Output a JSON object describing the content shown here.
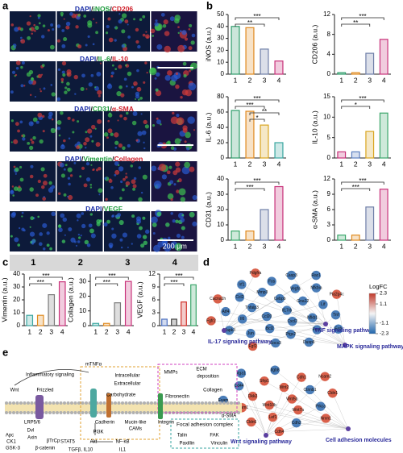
{
  "panel_letters": [
    "a",
    "b",
    "c",
    "d",
    "e"
  ],
  "panel_a": {
    "row_labels": [
      {
        "parts": [
          "DAPI",
          "/",
          "iNOS",
          "/",
          "CD206"
        ],
        "colors": [
          "#1b2fa8",
          "#111111",
          "#1a9a3a",
          "#111111",
          "#d0202a"
        ]
      },
      {
        "parts": [
          "DAPI",
          "/",
          "IL-6",
          "/",
          "IL-10"
        ],
        "colors": [
          "#1b2fa8",
          "#111111",
          "#1a9a3a",
          "#111111",
          "#d0202a"
        ]
      },
      {
        "parts": [
          "DAPI",
          "/",
          "CD31",
          "/",
          "α-SMA"
        ],
        "colors": [
          "#1b2fa8",
          "#111111",
          "#1a9a3a",
          "#111111",
          "#d0202a"
        ]
      },
      {
        "parts": [
          "DAPI",
          "/",
          "Vimentin",
          "/",
          "Collagen"
        ],
        "colors": [
          "#1b2fa8",
          "#111111",
          "#1a9a3a",
          "#111111",
          "#d0202a"
        ]
      },
      {
        "parts": [
          "DAPI",
          "/",
          "VEGF"
        ],
        "colors": [
          "#1b2fa8",
          "#111111",
          "#1a9a3a"
        ]
      }
    ],
    "columns": [
      "1",
      "2",
      "3",
      "4"
    ],
    "scale_bar": "200 μm"
  },
  "chart_data": [
    {
      "type": "bar",
      "ylabel": "iNOS (a.u.)",
      "categories": [
        "1",
        "2",
        "3",
        "4"
      ],
      "values": [
        40,
        39,
        21,
        11
      ],
      "colors": [
        "#2e9c6a",
        "#e08a1e",
        "#6f7fa8",
        "#c8327a"
      ],
      "ylim": [
        0,
        50
      ],
      "yticks": [
        0,
        10,
        20,
        30,
        40,
        50
      ],
      "significance": [
        "***",
        "**"
      ]
    },
    {
      "type": "bar",
      "ylabel": "CD206 (a.u.)",
      "categories": [
        "1",
        "2",
        "3",
        "4"
      ],
      "values": [
        0.3,
        0.3,
        4.2,
        7
      ],
      "colors": [
        "#2e9c6a",
        "#e08a1e",
        "#6f7fa8",
        "#c8327a"
      ],
      "ylim": [
        0,
        12
      ],
      "yticks": [
        0,
        4,
        8,
        12
      ],
      "significance": [
        "***",
        "**"
      ]
    },
    {
      "type": "bar",
      "ylabel": "IL-6 (a.u.)",
      "categories": [
        "1",
        "2",
        "3",
        "4"
      ],
      "values": [
        62,
        61,
        43,
        20
      ],
      "colors": [
        "#2e9c6a",
        "#e08a1e",
        "#d9a520",
        "#3aa6a0"
      ],
      "ylim": [
        0,
        80
      ],
      "yticks": [
        0,
        20,
        40,
        60,
        80
      ],
      "significance": [
        "***",
        "***",
        "**",
        "*"
      ]
    },
    {
      "type": "bar",
      "ylabel": "IL-10 (a.u.)",
      "categories": [
        "1",
        "2",
        "3",
        "4"
      ],
      "values": [
        1.5,
        1.5,
        6.5,
        11
      ],
      "colors": [
        "#c8327a",
        "#5a7fc0",
        "#d9a520",
        "#3aa66a"
      ],
      "ylim": [
        0,
        15
      ],
      "yticks": [
        0,
        5,
        10,
        15
      ],
      "significance": [
        "***",
        "*"
      ]
    },
    {
      "type": "bar",
      "ylabel": "CD31 (a.u.)",
      "categories": [
        "1",
        "2",
        "3",
        "4"
      ],
      "values": [
        6,
        6,
        20,
        35
      ],
      "colors": [
        "#3aa66a",
        "#e08a1e",
        "#6f7fa8",
        "#c8327a"
      ],
      "ylim": [
        0,
        40
      ],
      "yticks": [
        0,
        10,
        20,
        30,
        40
      ],
      "significance": [
        "***",
        "***"
      ]
    },
    {
      "type": "bar",
      "ylabel": "α-SMA (a.u.)",
      "categories": [
        "1",
        "2",
        "3",
        "4"
      ],
      "values": [
        1,
        1,
        6.5,
        10
      ],
      "colors": [
        "#3aa66a",
        "#e08a1e",
        "#6f7fa8",
        "#c8327a"
      ],
      "ylim": [
        0,
        12
      ],
      "yticks": [
        0,
        3,
        6,
        9,
        12
      ],
      "significance": [
        "***",
        "***"
      ]
    },
    {
      "type": "bar",
      "ylabel": "Vimentin (a.u.)",
      "categories": [
        "1",
        "2",
        "3",
        "4"
      ],
      "values": [
        8,
        8,
        24,
        34
      ],
      "colors": [
        "#3aa6a0",
        "#e08a1e",
        "#7a7a7a",
        "#c8327a"
      ],
      "ylim": [
        0,
        40
      ],
      "yticks": [
        0,
        10,
        20,
        30,
        40
      ],
      "significance": [
        "***",
        "***"
      ]
    },
    {
      "type": "bar",
      "ylabel": "Collagen (a.u.)",
      "categories": [
        "1",
        "2",
        "3",
        "4"
      ],
      "values": [
        1.5,
        1.5,
        15.5,
        30
      ],
      "colors": [
        "#3aa6a0",
        "#e08a1e",
        "#7a7a7a",
        "#c8327a"
      ],
      "ylim": [
        0,
        35
      ],
      "yticks": [
        0,
        10,
        20,
        30
      ],
      "significance": [
        "***",
        "***"
      ]
    },
    {
      "type": "bar",
      "ylabel": "VEGF (a.u.)",
      "categories": [
        "1",
        "2",
        "3",
        "4"
      ],
      "values": [
        1.5,
        1.5,
        5.5,
        9.5
      ],
      "colors": [
        "#4a6fc0",
        "#444444",
        "#d0302a",
        "#3aa66a"
      ],
      "ylim": [
        0,
        12
      ],
      "yticks": [
        0,
        3,
        6,
        9,
        12
      ],
      "significance": [
        "***",
        "***"
      ]
    }
  ],
  "panel_d": {
    "pathways": [
      "TNF signaling pathway",
      "IL-17 signaling pathway",
      "MAPK signaling pathway",
      "Wnt signaling pathway",
      "Cell adhesion molecules"
    ],
    "network_upper": [
      {
        "label": "Il17rb",
        "color": "#4a7db8"
      },
      {
        "label": "Ccl20",
        "color": "#4a7db8"
      },
      {
        "label": "Cebpb",
        "color": "#4a7db8"
      },
      {
        "label": "Cxcl2",
        "color": "#4a7db8"
      },
      {
        "label": "Tnfaip3",
        "color": "#4a7db8"
      },
      {
        "label": "Gna12",
        "color": "#4a7db8"
      },
      {
        "label": "Bcl2",
        "color": "#4a7db8"
      },
      {
        "label": "Mmp3",
        "color": "#4a7db8"
      },
      {
        "label": "Nfkb1",
        "color": "#4a7db8"
      },
      {
        "label": "Il6",
        "color": "#4a7db8"
      },
      {
        "label": "Vegfa",
        "color": "#4a7db8"
      },
      {
        "label": "Ptgs2",
        "color": "#4a7db8"
      },
      {
        "label": "Ccl2",
        "color": "#4a7db8"
      },
      {
        "label": "Lif",
        "color": "#4a7db8"
      },
      {
        "label": "Jun",
        "color": "#4a7db8"
      },
      {
        "label": "Fos",
        "color": "#4a7db8"
      },
      {
        "label": "Fosb",
        "color": "#4a7db8"
      },
      {
        "label": "Atf4",
        "color": "#4a7db8"
      },
      {
        "label": "Nfkbia",
        "color": "#4a7db8"
      },
      {
        "label": "Socs3",
        "color": "#4a7db8"
      },
      {
        "label": "Irf1",
        "color": "#4a7db8"
      },
      {
        "label": "Tnf",
        "color": "#4a7db8"
      },
      {
        "label": "Mapk3",
        "color": "#4a7db8"
      },
      {
        "label": "Casp3",
        "color": "#4a7db8"
      },
      {
        "label": "Dusp6",
        "color": "#4a7db8"
      },
      {
        "label": "Cacna1h",
        "color": "#d9604a"
      },
      {
        "label": "Pla2g4c",
        "color": "#d9604a"
      },
      {
        "label": "Fgf2",
        "color": "#d9604a"
      },
      {
        "label": "Pdgfra",
        "color": "#d9604a"
      },
      {
        "label": "Egfr",
        "color": "#4a7db8"
      },
      {
        "label": "Fgfr2",
        "color": "#d9604a"
      },
      {
        "label": "Rac1",
        "color": "#4a7db8"
      }
    ],
    "network_lower": [
      {
        "label": "Wnt5b",
        "color": "#d9604a"
      },
      {
        "label": "Wnt10b",
        "color": "#d9604a"
      },
      {
        "label": "Wnt2",
        "color": "#d9604a"
      },
      {
        "label": "Wnt7a",
        "color": "#d9604a"
      },
      {
        "label": "Dkk2",
        "color": "#d9604a"
      },
      {
        "label": "Ctnnb1",
        "color": "#4a7db8"
      },
      {
        "label": "Lef1",
        "color": "#d9604a"
      },
      {
        "label": "Sfrp1",
        "color": "#d9604a"
      },
      {
        "label": "Prkca",
        "color": "#4a7db8"
      },
      {
        "label": "Ncam1",
        "color": "#d9604a"
      },
      {
        "label": "Cdh1",
        "color": "#d9604a"
      },
      {
        "label": "Cdh2",
        "color": "#4a7db8"
      },
      {
        "label": "Cd44",
        "color": "#4a7db8"
      },
      {
        "label": "Cldn1",
        "color": "#d9604a"
      },
      {
        "label": "Cldn6",
        "color": "#d9604a"
      },
      {
        "label": "Itgb8",
        "color": "#4a7db8"
      },
      {
        "label": "Nrxn1",
        "color": "#d9604a"
      },
      {
        "label": "Esam",
        "color": "#4a7db8"
      },
      {
        "label": "Ncam2",
        "color": "#d9604a"
      },
      {
        "label": "Cdh4",
        "color": "#d9604a"
      },
      {
        "label": "Itga1",
        "color": "#4a7db8"
      }
    ],
    "legend": {
      "title": "LogFC",
      "ticks": [
        2.3,
        1.1,
        -1.1,
        -2.3
      ],
      "colors": [
        "#c0392b",
        "#f4f4f4",
        "#2166ac"
      ]
    }
  },
  "panel_e": {
    "labels": [
      "Inflammatory signaling",
      "Wnt",
      "Frizzled",
      "LRP5/6",
      "Apc",
      "Dvl",
      "Axin",
      "CK1",
      "βTrCp",
      "GSK-3",
      "β-catenin",
      "mTNFα",
      "Intracellular",
      "Extracellular",
      "Carbohydrate",
      "Cadherin",
      "Mucin-like",
      "CAMs",
      "Integrin",
      "Fibronectin",
      "MMPs",
      "ECM",
      "deposition",
      "Collagen",
      "Focal adhesion complex",
      "Talin",
      "FAK",
      "Paxillin",
      "Vinculin",
      "α-SMA",
      "PI3K",
      "STAT5",
      "Akt",
      "NF-κB",
      "TGFβ, IL10",
      "IL1"
    ]
  }
}
